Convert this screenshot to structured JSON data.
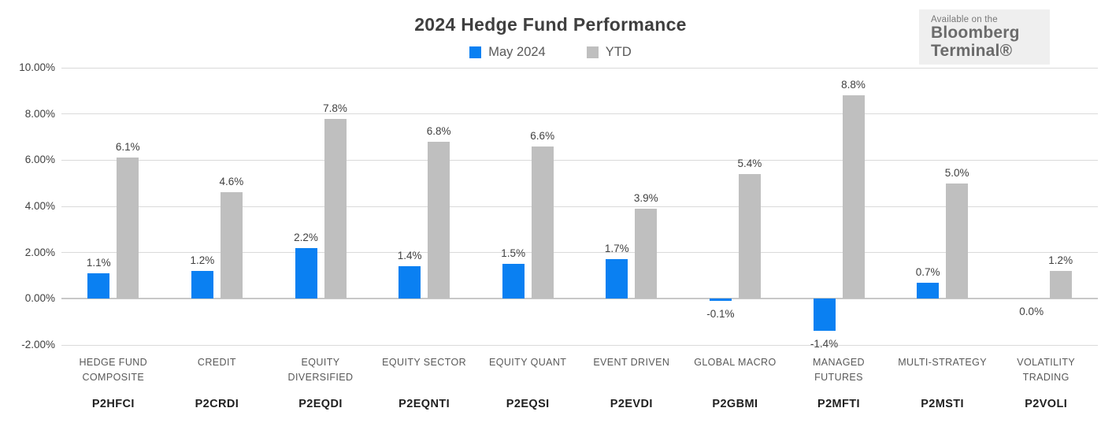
{
  "header": {
    "title": "2024 Hedge Fund Performance"
  },
  "badge": {
    "line1": "Available on the",
    "line2": "Bloomberg",
    "line3": "Terminal®"
  },
  "legend": {
    "items": [
      {
        "label": "May 2024",
        "color": "#0a80f2"
      },
      {
        "label": "YTD",
        "color": "#bfbfbf"
      }
    ]
  },
  "chart_data": {
    "type": "bar",
    "title": "2024 Hedge Fund Performance",
    "xlabel": "",
    "ylabel": "",
    "ylim": [
      -2,
      10
    ],
    "grid": true,
    "legend_position": "top",
    "yticks": [
      {
        "value": 10,
        "label": "10.00%"
      },
      {
        "value": 8,
        "label": "8.00%"
      },
      {
        "value": 6,
        "label": "6.00%"
      },
      {
        "value": 4,
        "label": "4.00%"
      },
      {
        "value": 2,
        "label": "2.00%"
      },
      {
        "value": 0,
        "label": "0.00%"
      },
      {
        "value": -2,
        "label": "-2.00%"
      }
    ],
    "categories": [
      {
        "label": "HEDGE FUND COMPOSITE",
        "display": "HEDGE FUND\nCOMPOSITE",
        "ticker": "P2HFCI"
      },
      {
        "label": "CREDIT",
        "display": "CREDIT",
        "ticker": "P2CRDI"
      },
      {
        "label": "EQUITY DIVERSIFIED",
        "display": "EQUITY\nDIVERSIFIED",
        "ticker": "P2EQDI"
      },
      {
        "label": "EQUITY SECTOR",
        "display": "EQUITY SECTOR",
        "ticker": "P2EQNTI"
      },
      {
        "label": "EQUITY QUANT",
        "display": "EQUITY QUANT",
        "ticker": "P2EQSI"
      },
      {
        "label": "EVENT DRIVEN",
        "display": "EVENT DRIVEN",
        "ticker": "P2EVDI"
      },
      {
        "label": "GLOBAL MACRO",
        "display": "GLOBAL MACRO",
        "ticker": "P2GBMI"
      },
      {
        "label": "MANAGED FUTURES",
        "display": "MANAGED\nFUTURES",
        "ticker": "P2MFTI"
      },
      {
        "label": "MULTI-STRATEGY",
        "display": "MULTI-STRATEGY",
        "ticker": "P2MSTI"
      },
      {
        "label": "VOLATILITY TRADING",
        "display": "VOLATILITY\nTRADING",
        "ticker": "P2VOLI"
      }
    ],
    "series": [
      {
        "name": "May 2024",
        "color": "#0a80f2",
        "values": [
          1.1,
          1.2,
          2.2,
          1.4,
          1.5,
          1.7,
          -0.1,
          -1.4,
          0.7,
          0.0
        ],
        "labels": [
          "1.1%",
          "1.2%",
          "2.2%",
          "1.4%",
          "1.5%",
          "1.7%",
          "-0.1%",
          "-1.4%",
          "0.7%",
          "0.0%"
        ]
      },
      {
        "name": "YTD",
        "color": "#bfbfbf",
        "values": [
          6.1,
          4.6,
          7.8,
          6.8,
          6.6,
          3.9,
          5.4,
          8.8,
          5.0,
          1.2
        ],
        "labels": [
          "6.1%",
          "4.6%",
          "7.8%",
          "6.8%",
          "6.6%",
          "3.9%",
          "5.4%",
          "8.8%",
          "5.0%",
          "1.2%"
        ]
      }
    ]
  }
}
